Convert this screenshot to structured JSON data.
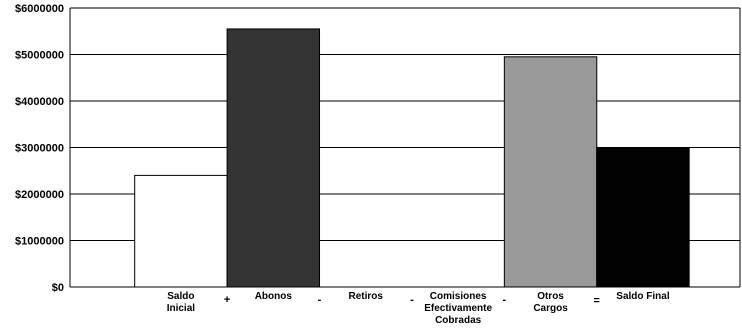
{
  "chart_data": {
    "type": "bar",
    "categories": [
      [
        "Saldo",
        "Inicial"
      ],
      [
        "Abonos"
      ],
      [
        "Retiros"
      ],
      [
        "Comisiones",
        "Efectivamente",
        "Cobradas"
      ],
      [
        "Otros",
        "Cargos"
      ],
      [
        "Saldo Final"
      ]
    ],
    "operators": [
      "+",
      "-",
      "-",
      "-",
      "="
    ],
    "values": [
      2400000,
      5550000,
      0,
      0,
      4950000,
      3000000
    ],
    "bar_colors": [
      "#ffffff",
      "#333333",
      "#888888",
      "#666666",
      "#999999",
      "#000000"
    ],
    "yticks": [
      "$0",
      "$1000000",
      "$2000000",
      "$3000000",
      "$4000000",
      "$5000000",
      "$6000000"
    ],
    "ylim": [
      0,
      6000000
    ],
    "grid": true,
    "legend": "none"
  }
}
